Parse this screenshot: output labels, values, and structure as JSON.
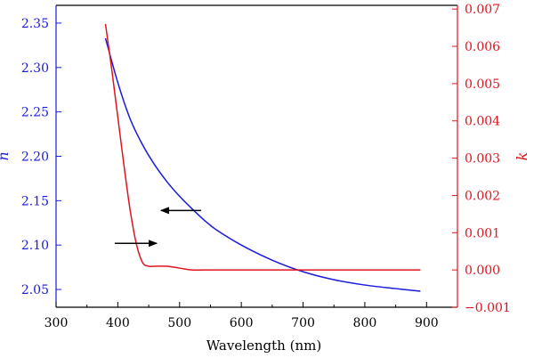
{
  "chart_data": {
    "type": "line",
    "xlabel": "Wavelength (nm)",
    "ylabel_left": "n",
    "ylabel_right": "k",
    "xlim": [
      300,
      950
    ],
    "ylim_left": [
      2.03,
      2.37
    ],
    "ylim_right": [
      -0.001,
      0.0071
    ],
    "x_ticks": [
      300,
      400,
      500,
      600,
      700,
      800,
      900
    ],
    "x_tick_labels": [
      "300",
      "400",
      "500",
      "600",
      "700",
      "800",
      "900"
    ],
    "y_left_ticks": [
      2.05,
      2.1,
      2.15,
      2.2,
      2.25,
      2.3,
      2.35
    ],
    "y_left_tick_labels": [
      "2.05",
      "2.10",
      "2.15",
      "2.20",
      "2.25",
      "2.30",
      "2.35"
    ],
    "y_right_ticks": [
      -0.001,
      0.0,
      0.001,
      0.002,
      0.003,
      0.004,
      0.005,
      0.006,
      0.007
    ],
    "y_right_tick_labels": [
      "−0.001",
      "0.000",
      "0.001",
      "0.002",
      "0.003",
      "0.004",
      "0.005",
      "0.006",
      "0.007"
    ],
    "grid": false,
    "series": [
      {
        "axis": "left",
        "color": "#1a1adc",
        "x": [
          380,
          400,
          420,
          440,
          460,
          480,
          500,
          520,
          540,
          560,
          600,
          650,
          700,
          750,
          800,
          850,
          890
        ],
        "y": [
          2.333,
          2.283,
          2.242,
          2.213,
          2.19,
          2.171,
          2.155,
          2.141,
          2.128,
          2.117,
          2.1,
          2.083,
          2.07,
          2.061,
          2.055,
          2.051,
          2.048
        ]
      },
      {
        "axis": "right",
        "color": "#e0141e",
        "x": [
          380,
          390,
          400,
          410,
          420,
          430,
          440,
          450,
          460,
          480,
          500,
          520,
          540,
          560,
          600,
          700,
          800,
          890
        ],
        "y": [
          0.0066,
          0.0054,
          0.0041,
          0.0028,
          0.0016,
          0.0007,
          0.0002,
          0.0001,
          0.0001,
          0.0001,
          5e-05,
          0.0,
          0.0,
          0.0,
          0.0,
          0.0,
          0.0,
          0.0
        ]
      }
    ],
    "annotations": [
      {
        "type": "arrow",
        "direction": "left",
        "x_from": 535,
        "x_to": 470,
        "y_left": 2.139
      },
      {
        "type": "arrow",
        "direction": "right",
        "x_from": 395,
        "x_to": 463,
        "y_left": 2.102
      }
    ],
    "colors": {
      "left_axis": "#1a1adc",
      "right_axis": "#e0141e",
      "frame": "#000000",
      "arrow": "#000000"
    }
  }
}
